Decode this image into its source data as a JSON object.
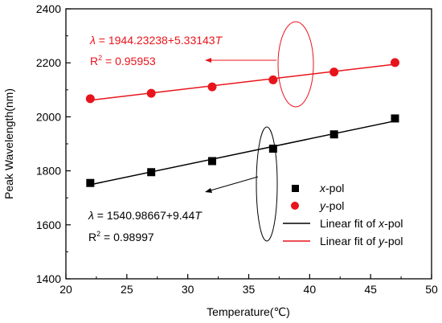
{
  "chart_data": {
    "type": "scatter",
    "xlabel": "Temperature(℃)",
    "ylabel": "Peak Wavelength(nm)",
    "xlim": [
      20,
      50
    ],
    "ylim": [
      1400,
      2400
    ],
    "x_ticks": [
      20,
      25,
      30,
      35,
      40,
      45,
      50
    ],
    "y_ticks": [
      1400,
      1600,
      1800,
      2000,
      2200,
      2400
    ],
    "grid": false,
    "legend_position": "lower-right",
    "series": [
      {
        "name": "x-pol",
        "legend_main": "x",
        "legend_suffix": "-pol",
        "marker": "square",
        "color": "#000000",
        "x": [
          22,
          27,
          32,
          37,
          42,
          47
        ],
        "y": [
          1755,
          1795,
          1836,
          1882,
          1935,
          1994
        ]
      },
      {
        "name": "y-pol",
        "legend_main": "y",
        "legend_suffix": "-pol",
        "marker": "circle",
        "color": "#e8141b",
        "x": [
          22,
          27,
          32,
          37,
          42,
          47
        ],
        "y": [
          2067,
          2087,
          2111,
          2137,
          2166,
          2201
        ]
      }
    ],
    "fits": [
      {
        "name": "Linear fit of x-pol",
        "legend_prefix": "Linear fit of ",
        "legend_italic": "x",
        "legend_suffix": "-pol",
        "color": "#000000",
        "intercept": 1540.98667,
        "slope": 9.44,
        "x_range": [
          22,
          47
        ]
      },
      {
        "name": "Linear fit of y-pol",
        "legend_prefix": "Linear fit of ",
        "legend_italic": "y",
        "legend_suffix": "-pol",
        "color": "#e8141b",
        "intercept": 1944.23238,
        "slope": 5.33143,
        "x_range": [
          22,
          47
        ]
      }
    ],
    "annotations": {
      "red_eq_lambda": "λ",
      "red_eq_body": " = 1944.23238+5.33143",
      "red_eq_var": "T",
      "red_r2_base": "R",
      "red_r2_exp": "2",
      "red_r2_val": " = 0.95953",
      "black_eq_lambda": "λ",
      "black_eq_body": " = 1540.98667+9.44",
      "black_eq_var": "T",
      "black_r2_base": "R",
      "black_r2_exp": "2",
      "black_r2_val": " = 0.98997"
    }
  }
}
